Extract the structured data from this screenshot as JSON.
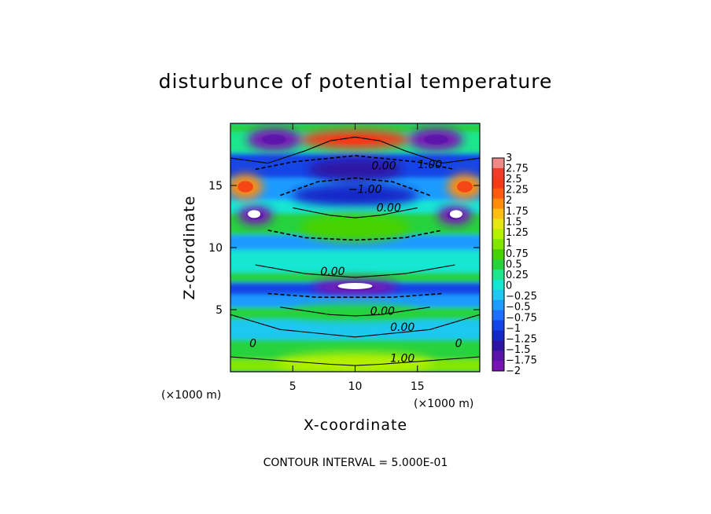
{
  "chart_data": {
    "type": "heatmap",
    "title": "disturbunce of potential temperature",
    "xlabel": "X-coordinate",
    "ylabel": "Z-coordinate",
    "x_unit": "(×1000 m)",
    "y_unit": "(×1000 m)",
    "xlim": [
      0,
      20
    ],
    "ylim": [
      0,
      20
    ],
    "x_ticks": [
      "5",
      "10",
      "15"
    ],
    "y_ticks": [
      "5",
      "10",
      "15"
    ],
    "colorbar_labels": [
      "3",
      "2.75",
      "2.5",
      "2.25",
      "2",
      "1.75",
      "1.5",
      "1.25",
      "1",
      "0.75",
      "0.5",
      "0.25",
      "0",
      "−0.25",
      "−0.5",
      "−0.75",
      "−1",
      "−1.25",
      "−1.5",
      "−1.75",
      "−2"
    ],
    "colorbar_colors": [
      "#f08888",
      "#f03c28",
      "#f53a18",
      "#ff5a10",
      "#ff8c0a",
      "#ffbe14",
      "#e6e614",
      "#b4f000",
      "#82e600",
      "#46d200",
      "#28d23c",
      "#1ee68c",
      "#14e6d2",
      "#1ec8f0",
      "#1e9bff",
      "#1e6eff",
      "#1444e6",
      "#1428c8",
      "#2d14a5",
      "#5a14aa",
      "#7814b4"
    ],
    "colorbar_range": [
      -2,
      3
    ],
    "contour_interval": "CONTOUR INTERVAL = 5.000E-01",
    "contour_labels": [
      "1.00",
      "0.00",
      "−1.00",
      "0.00",
      "0.00",
      "0.00",
      "0.00",
      "0",
      "1.00",
      "0"
    ],
    "features": [
      {
        "x": 10,
        "z": 18.7,
        "value": 2.4
      },
      {
        "x": 3.5,
        "z": 18.7,
        "value": -1.9
      },
      {
        "x": 16.5,
        "z": 18.7,
        "value": -1.9
      },
      {
        "x": 1.2,
        "z": 14.9,
        "value": 2.0
      },
      {
        "x": 18.8,
        "z": 14.9,
        "value": 2.0
      },
      {
        "x": 10,
        "z": 16.3,
        "value": -1.6
      },
      {
        "x": 10,
        "z": 14.2,
        "value": -1.2
      },
      {
        "x": 10,
        "z": 11.6,
        "value": 0.8
      },
      {
        "x": 2.0,
        "z": 12.6,
        "value": -1.9
      },
      {
        "x": 18.0,
        "z": 12.6,
        "value": -1.9
      },
      {
        "x": 10,
        "z": 6.8,
        "value": -2.0
      },
      {
        "x": 10,
        "z": 4.8,
        "value": 0.6
      },
      {
        "x": 10,
        "z": 0.7,
        "value": 1.2
      }
    ]
  },
  "labels": {
    "title": "disturbunce of potential temperature",
    "xlabel": "X-coordinate",
    "ylabel": "Z-coordinate",
    "xunit": "(×1000 m)",
    "yunit": "(×1000 m)",
    "footer": "CONTOUR INTERVAL = 5.000E-01"
  }
}
